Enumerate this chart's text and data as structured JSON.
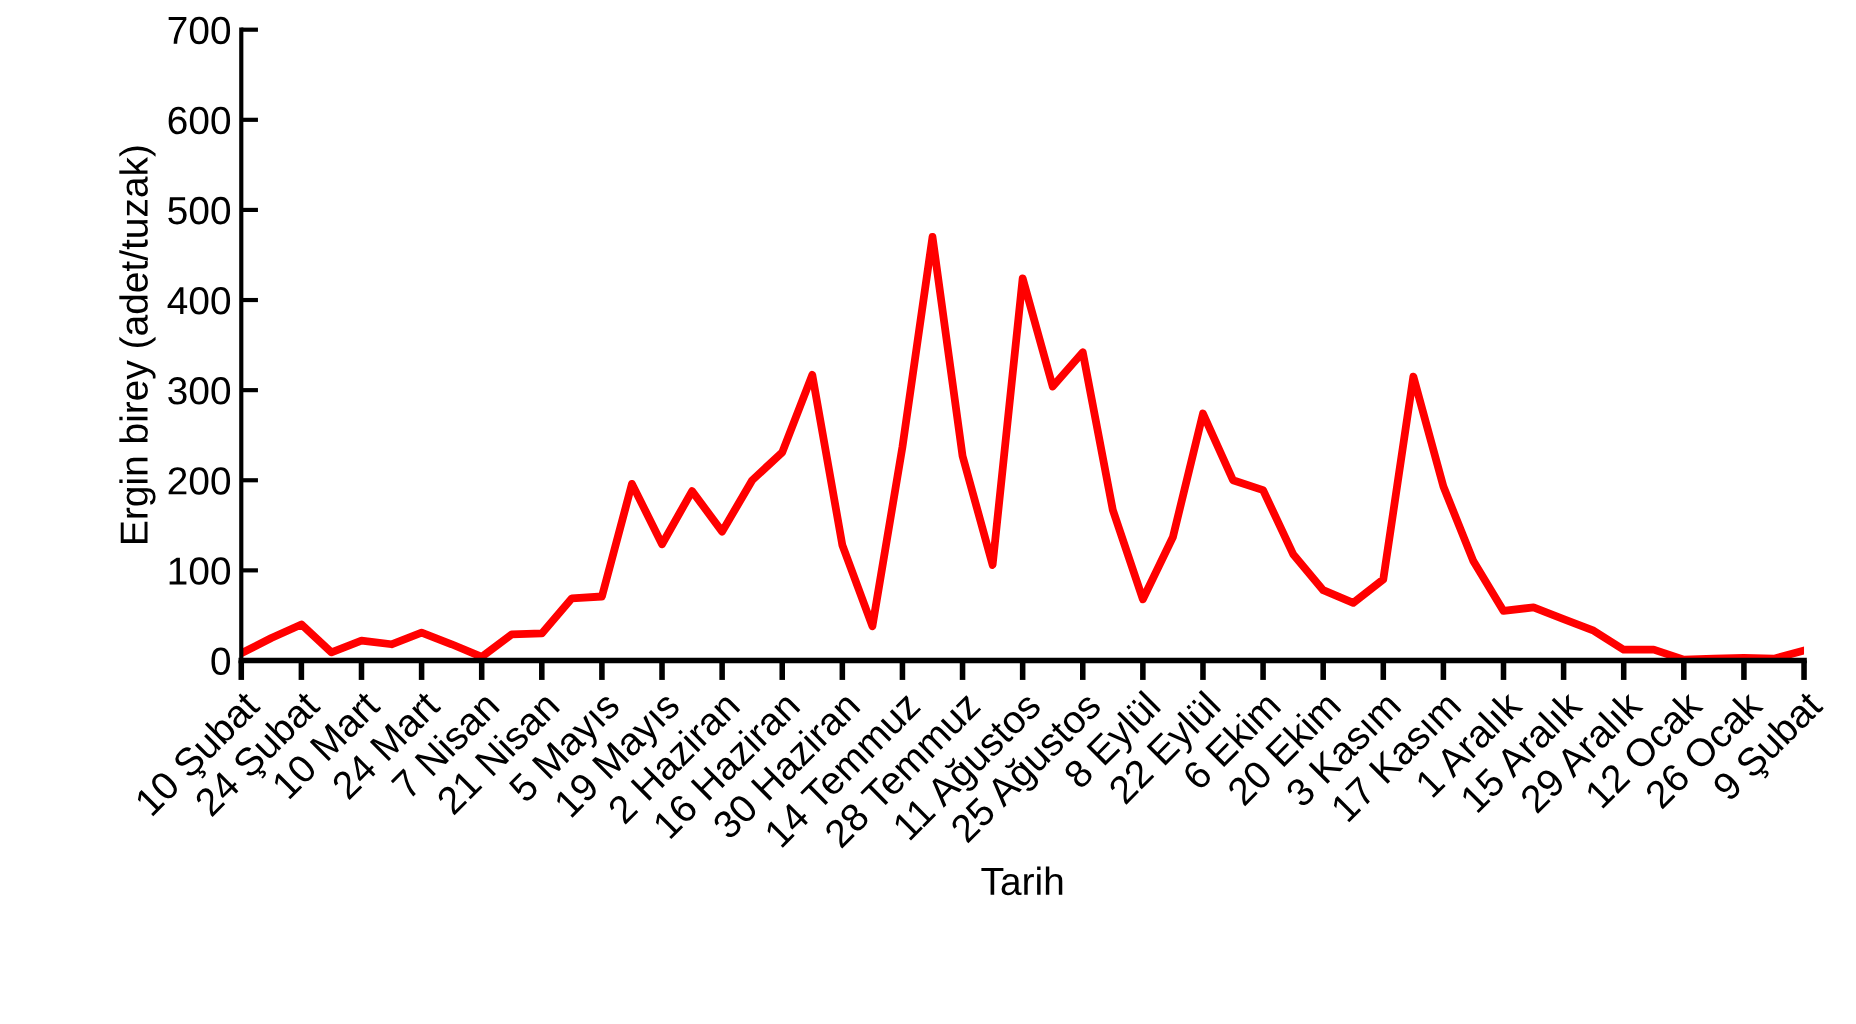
{
  "chart_data": {
    "type": "line",
    "xlabel": "Tarih",
    "ylabel": "Ergin birey (adet/tuzak)",
    "categories": [
      "10 Şubat",
      null,
      "24 Şubat",
      null,
      "10 Mart",
      null,
      "24 Mart",
      null,
      "7 Nisan",
      null,
      "21 Nisan",
      null,
      "5 Mayıs",
      null,
      "19 Mayıs",
      null,
      "2 Haziran",
      null,
      "16 Haziran",
      null,
      "30 Haziran",
      null,
      "14 Temmuz",
      null,
      "28 Temmuz",
      null,
      "11 Ağustos",
      null,
      "25 Ağustos",
      null,
      "8 Eylül",
      null,
      "22 Eylül",
      null,
      "6 Ekim",
      null,
      "20 Ekim",
      null,
      "3 Kasım",
      null,
      "17 Kasım",
      null,
      "1 Aralık",
      null,
      "15 Aralık",
      null,
      "29 Aralık",
      null,
      "12 Ocak",
      null,
      "26 Ocak",
      null,
      "9 Şubat"
    ],
    "series": [
      {
        "color": "#ff0000",
        "values": [
          8,
          25,
          40,
          9,
          22,
          18,
          31,
          18,
          4,
          29,
          30,
          69,
          71,
          196,
          129,
          188,
          143,
          200,
          231,
          317,
          128,
          38,
          237,
          470,
          227,
          106,
          424,
          304,
          342,
          167,
          68,
          137,
          274,
          200,
          189,
          118,
          78,
          64,
          90,
          315,
          193,
          110,
          55,
          59,
          46,
          33,
          12,
          12,
          1,
          2,
          3,
          2,
          11
        ]
      }
    ],
    "ylim": [
      0,
      700
    ],
    "yticks": [
      0,
      100,
      200,
      300,
      400,
      500,
      600,
      700
    ],
    "marker": "none",
    "line_style": "solid"
  }
}
